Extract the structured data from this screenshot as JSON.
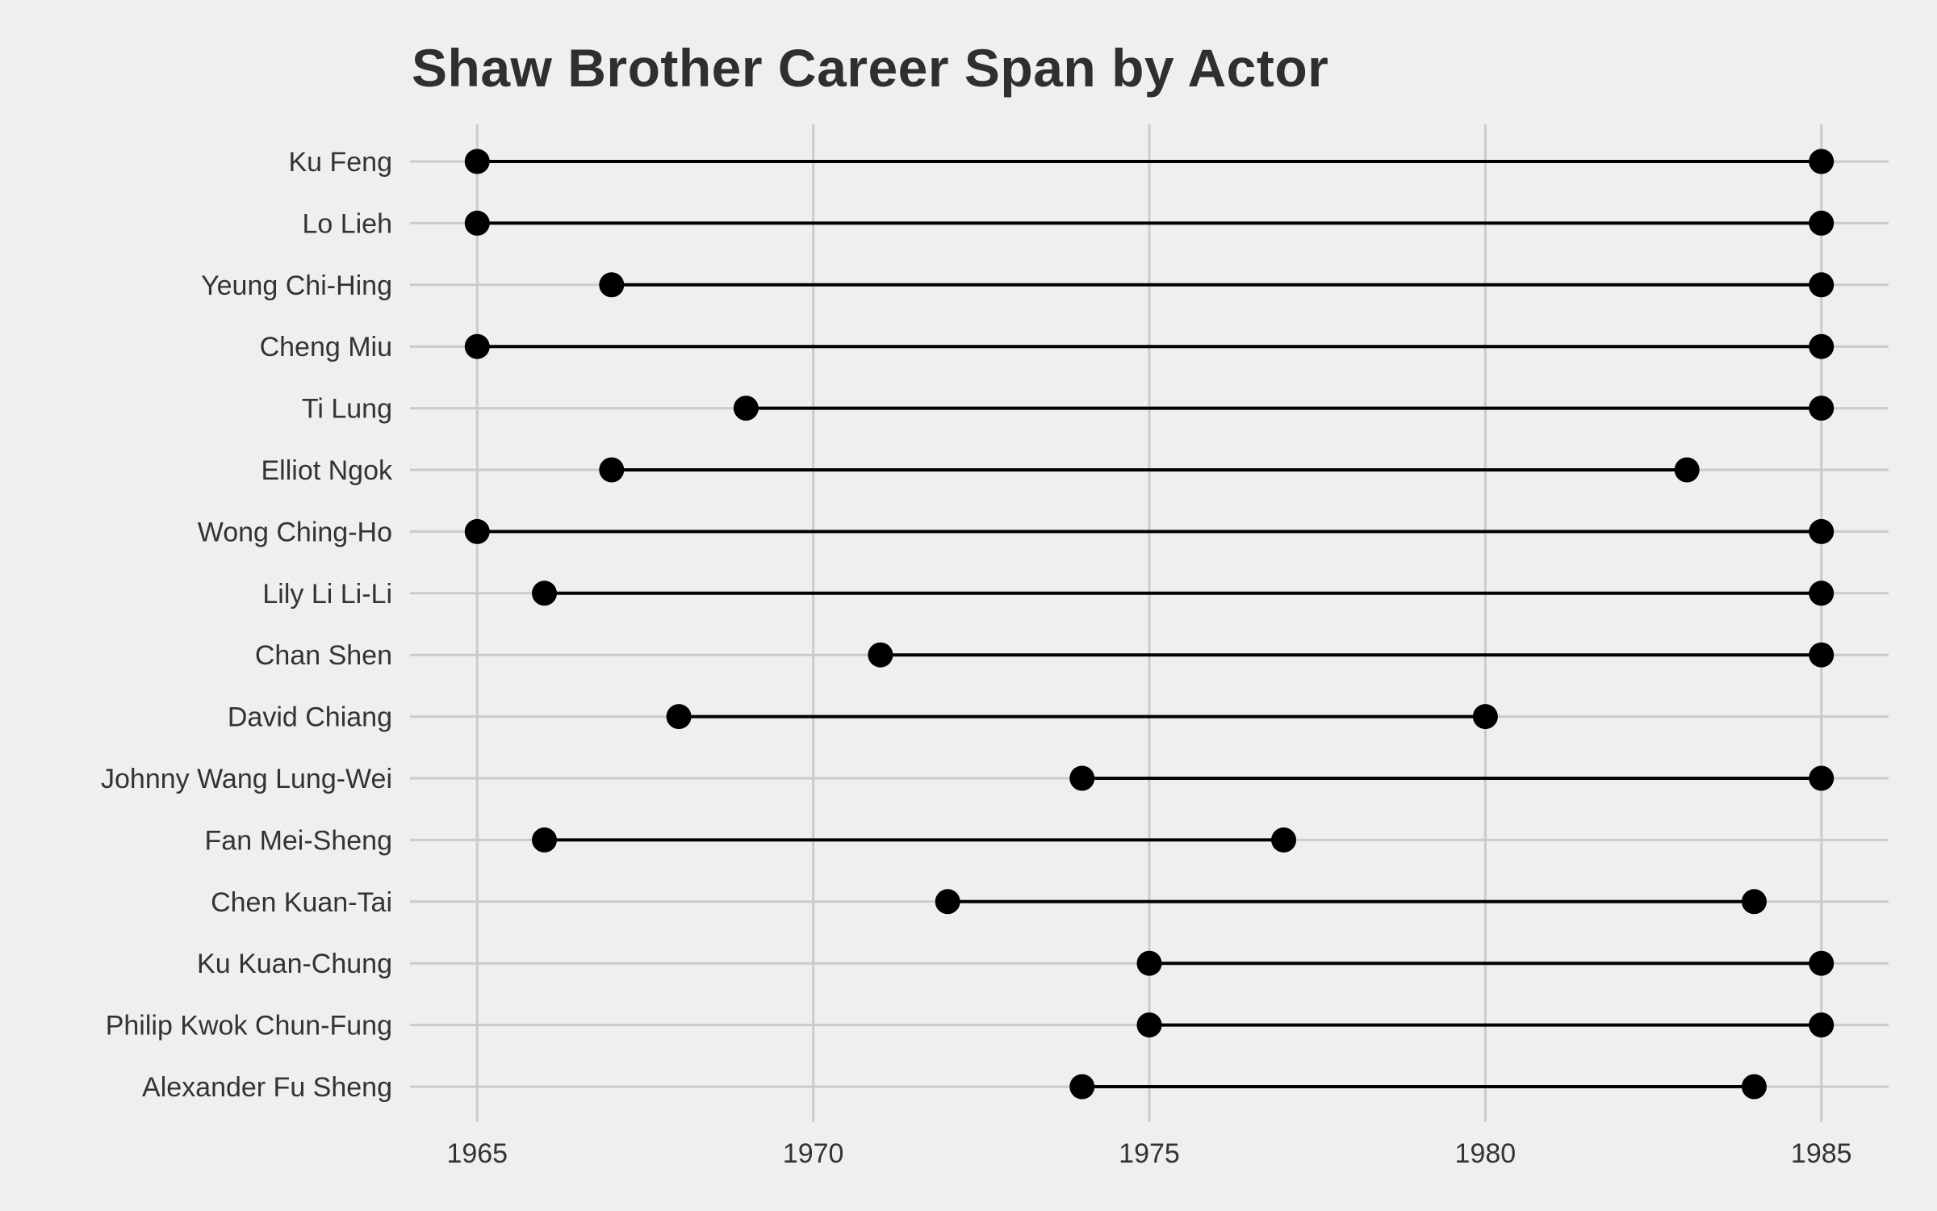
{
  "chart_data": {
    "type": "dumbbell",
    "title": "Shaw Brother Career Span by Actor",
    "xlabel": "",
    "ylabel": "",
    "xlim": [
      1964,
      1986
    ],
    "x_ticks": [
      1965,
      1970,
      1975,
      1980,
      1985
    ],
    "grid": true,
    "legend": "none",
    "colors": {
      "background": "#efefef",
      "grid": "#cbcbcb",
      "marks": "#000000",
      "text": "#333333"
    },
    "actors": [
      {
        "name": "Ku Feng",
        "start": 1965,
        "end": 1985
      },
      {
        "name": "Lo Lieh",
        "start": 1965,
        "end": 1985
      },
      {
        "name": "Yeung Chi-Hing",
        "start": 1967,
        "end": 1985
      },
      {
        "name": "Cheng Miu",
        "start": 1965,
        "end": 1985
      },
      {
        "name": "Ti Lung",
        "start": 1969,
        "end": 1985
      },
      {
        "name": "Elliot Ngok",
        "start": 1967,
        "end": 1983
      },
      {
        "name": "Wong Ching-Ho",
        "start": 1965,
        "end": 1985
      },
      {
        "name": "Lily Li Li-Li",
        "start": 1966,
        "end": 1985
      },
      {
        "name": "Chan Shen",
        "start": 1971,
        "end": 1985
      },
      {
        "name": "David Chiang",
        "start": 1968,
        "end": 1980
      },
      {
        "name": "Johnny Wang Lung-Wei",
        "start": 1974,
        "end": 1985
      },
      {
        "name": "Fan Mei-Sheng",
        "start": 1966,
        "end": 1977
      },
      {
        "name": "Chen Kuan-Tai",
        "start": 1972,
        "end": 1984
      },
      {
        "name": "Ku Kuan-Chung",
        "start": 1975,
        "end": 1985
      },
      {
        "name": "Philip Kwok Chun-Fung",
        "start": 1975,
        "end": 1985
      },
      {
        "name": "Alexander Fu Sheng",
        "start": 1974,
        "end": 1984
      }
    ]
  }
}
